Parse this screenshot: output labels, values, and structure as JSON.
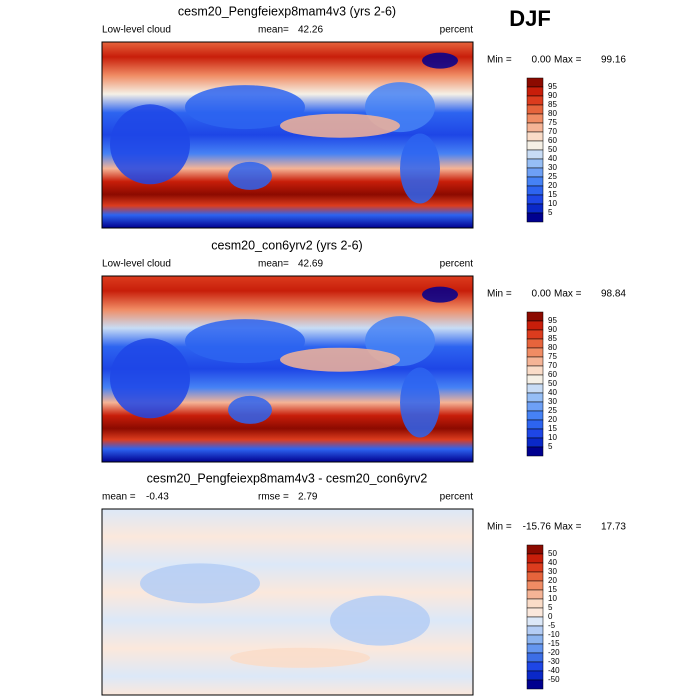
{
  "season": "DJF",
  "panels": [
    {
      "title": "cesm20_Pengfeiexp8mam4v3 (yrs 2-6)",
      "left_label": "Low-level cloud",
      "mean_label": "mean=",
      "mean": "42.26",
      "units": "percent",
      "min_label": "Min =",
      "min": "0.00",
      "max_label": "Max =",
      "max": "99.16",
      "colorbar": {
        "levels": [
          95,
          90,
          85,
          80,
          75,
          70,
          60,
          50,
          40,
          30,
          25,
          20,
          15,
          10,
          5
        ],
        "colors": [
          "#8c0a00",
          "#c81e0a",
          "#dc3c1e",
          "#e6643c",
          "#f08c64",
          "#f5b496",
          "#fadcc8",
          "#f5f0e6",
          "#c8dcf5",
          "#96bef5",
          "#6ea0f5",
          "#4682f5",
          "#2d64f0",
          "#1e46e6",
          "#0a28c8",
          "#00008f"
        ]
      }
    },
    {
      "title": "cesm20_con6yrv2 (yrs 2-6)",
      "left_label": "Low-level cloud",
      "mean_label": "mean=",
      "mean": "42.69",
      "units": "percent",
      "min_label": "Min =",
      "min": "0.00",
      "max_label": "Max =",
      "max": "98.84",
      "colorbar": {
        "levels": [
          95,
          90,
          85,
          80,
          75,
          70,
          60,
          50,
          40,
          30,
          25,
          20,
          15,
          10,
          5
        ],
        "colors": [
          "#8c0a00",
          "#c81e0a",
          "#dc3c1e",
          "#e6643c",
          "#f08c64",
          "#f5b496",
          "#fadcc8",
          "#f5f0e6",
          "#c8dcf5",
          "#96bef5",
          "#6ea0f5",
          "#4682f5",
          "#2d64f0",
          "#1e46e6",
          "#0a28c8",
          "#00008f"
        ]
      }
    },
    {
      "title": "cesm20_Pengfeiexp8mam4v3 - cesm20_con6yrv2",
      "left_label": "mean =",
      "left_value": "-0.43",
      "mean_label": "rmse =",
      "mean": "2.79",
      "units": "percent",
      "min_label": "Min =",
      "min": "-15.76",
      "max_label": "Max =",
      "max": "17.73",
      "colorbar": {
        "levels": [
          50,
          40,
          30,
          20,
          15,
          10,
          5,
          0,
          -5,
          -10,
          -15,
          -20,
          -30,
          -40,
          -50
        ],
        "colors": [
          "#8c0a00",
          "#c81e0a",
          "#dc3c1e",
          "#e6643c",
          "#f08c64",
          "#f5b496",
          "#fadcc8",
          "#fbe8dc",
          "#dce8f8",
          "#b4cdf5",
          "#8cb4f0",
          "#6496f0",
          "#3c6ee6",
          "#1e46e6",
          "#0a28c8",
          "#00008f"
        ]
      }
    }
  ]
}
